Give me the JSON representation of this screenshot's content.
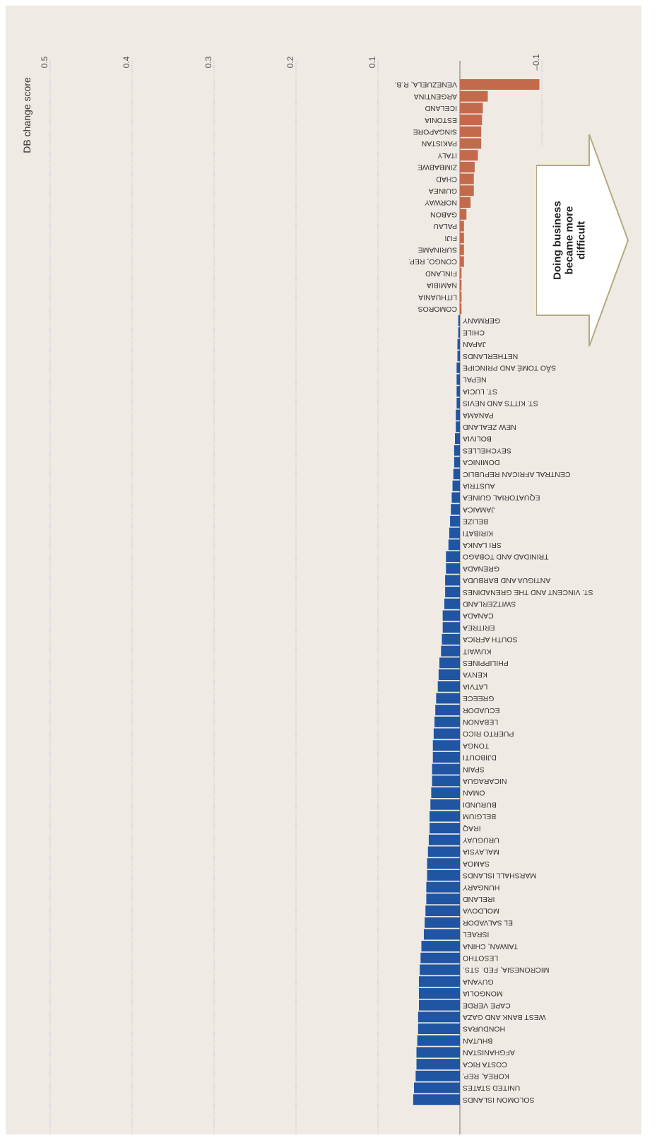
{
  "chart_data": {
    "type": "bar",
    "orientation": "horizontal",
    "ylabel": "DB change score",
    "axis_ticks": [
      "0.5",
      "0.4",
      "0.3",
      "0.2",
      "0.1",
      "–0.1"
    ],
    "tick_values": [
      0.5,
      0.4,
      0.3,
      0.2,
      0.1,
      -0.1
    ],
    "xlim": [
      -0.12,
      0.55
    ],
    "grid": true,
    "annotation": "Doing business\nbecame more\ndifficult",
    "colors": {
      "negative": "#c46a4c",
      "positive": "#1f55a3",
      "grid": "#9fb7d6",
      "background": "#efeae4"
    },
    "categories": [
      "VENEZUELA, R.B.",
      "ARGENTINA",
      "ICELAND",
      "ESTONIA",
      "SINGAPORE",
      "PAKISTAN",
      "ITALY",
      "ZIMBABWE",
      "CHAD",
      "GUINEA",
      "NORWAY",
      "GABON",
      "PALAU",
      "FIJI",
      "SURINAME",
      "CONGO, REP.",
      "FINLAND",
      "NAMIBIA",
      "LITHUANIA",
      "COMOROS",
      "GERMANY",
      "CHILE",
      "JAPAN",
      "NETHERLANDS",
      "SÃO TOMÉ AND PRINCIPE",
      "NEPAL",
      "ST. LUCIA",
      "ST. KITTS AND NEVIS",
      "PANAMA",
      "NEW ZEALAND",
      "BOLIVIA",
      "SEYCHELLES",
      "DOMINICA",
      "CENTRAL AFRICAN REPUBLIC",
      "AUSTRIA",
      "EQUATORIAL GUINEA",
      "JAMAICA",
      "BELIZE",
      "KIRIBATI",
      "SRI LANKA",
      "TRINIDAD AND TOBAGO",
      "GRENADA",
      "ANTIGUA AND BARBUDA",
      "ST. VINCENT AND THE GRENADINES",
      "SWITZERLAND",
      "CANADA",
      "ERITREA",
      "SOUTH AFRICA",
      "KUWAIT",
      "PHILIPPINES",
      "KENYA",
      "LATVIA",
      "GREECE",
      "ECUADOR",
      "LEBANON",
      "PUERTO RICO",
      "TONGA",
      "DJIBOUTI",
      "SPAIN",
      "NICARAGUA",
      "OMAN",
      "BURUNDI",
      "BELGIUM",
      "IRAQ",
      "URUGUAY",
      "MALAYSIA",
      "SAMOA",
      "MARSHALL ISLANDS",
      "HUNGARY",
      "IRELAND",
      "MOLDOVA",
      "EL SALVADOR",
      "ISRAEL",
      "TAIWAN, CHINA",
      "LESOTHO",
      "MICRONESIA, FED. STS.",
      "GUYANA",
      "MONGOLIA",
      "CAPE VERDE",
      "WEST BANK AND GAZA",
      "HONDURAS",
      "BHUTAN",
      "AFGHANISTAN",
      "COSTA RICA",
      "KOREA, REP.",
      "UNITED STATES",
      "SOLOMON ISLANDS"
    ],
    "values": [
      -0.097,
      -0.034,
      -0.028,
      -0.027,
      -0.026,
      -0.026,
      -0.022,
      -0.018,
      -0.017,
      -0.017,
      -0.013,
      -0.008,
      -0.005,
      -0.005,
      -0.005,
      -0.005,
      -0.002,
      -0.002,
      -0.002,
      -0.002,
      0.002,
      0.002,
      0.003,
      0.003,
      0.004,
      0.004,
      0.004,
      0.004,
      0.005,
      0.005,
      0.006,
      0.007,
      0.007,
      0.008,
      0.009,
      0.01,
      0.011,
      0.012,
      0.013,
      0.014,
      0.017,
      0.017,
      0.018,
      0.018,
      0.019,
      0.021,
      0.021,
      0.022,
      0.023,
      0.025,
      0.026,
      0.027,
      0.029,
      0.03,
      0.031,
      0.032,
      0.033,
      0.033,
      0.034,
      0.034,
      0.035,
      0.036,
      0.037,
      0.037,
      0.038,
      0.039,
      0.04,
      0.04,
      0.041,
      0.041,
      0.042,
      0.043,
      0.044,
      0.047,
      0.048,
      0.049,
      0.05,
      0.05,
      0.05,
      0.051,
      0.051,
      0.052,
      0.053,
      0.053,
      0.054,
      0.056,
      0.057
    ]
  }
}
